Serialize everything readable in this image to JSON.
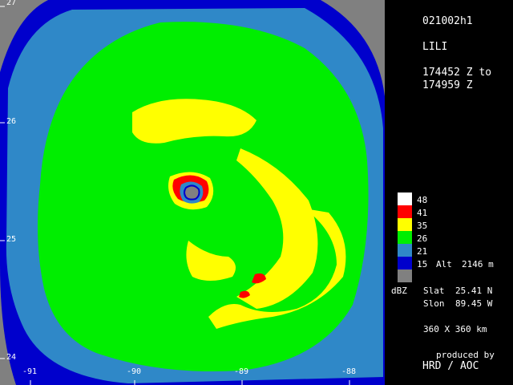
{
  "header": {
    "id": "021002h1",
    "storm": "LILI",
    "time_from": "174452 Z to",
    "time_to": "174959 Z"
  },
  "legend": {
    "items": [
      {
        "label": "48",
        "color": "#ffffff"
      },
      {
        "label": "41",
        "color": "#ff0000"
      },
      {
        "label": "35",
        "color": "#ffff00"
      },
      {
        "label": "26",
        "color": "#00ee00"
      },
      {
        "label": "21",
        "color": "#2f88c8"
      },
      {
        "label": "15",
        "color": "#0000cc"
      },
      {
        "label": "",
        "color": "#808080"
      }
    ],
    "units": "dBZ",
    "alt_label": "Alt",
    "alt_value": "2146 m"
  },
  "position": {
    "slat_label": "Slat",
    "slat_value": "25.41 N",
    "slon_label": "Slon",
    "slon_value": "89.45 W"
  },
  "domain_size": "360 X 360 km",
  "credit": {
    "line1": "produced by",
    "line2": "HRD / AOC"
  },
  "axes": {
    "lat_ticks": [
      "27",
      "26",
      "25",
      "24"
    ],
    "lon_ticks": [
      "-91",
      "-90",
      "-89",
      "-88"
    ]
  },
  "colors": {
    "background": "#000000",
    "nodata": "#808080",
    "c15": "#0000cc",
    "c21": "#2f88c8",
    "c26": "#00ee00",
    "c35": "#ffff00",
    "c41": "#ff0000",
    "c48": "#ffffff"
  }
}
